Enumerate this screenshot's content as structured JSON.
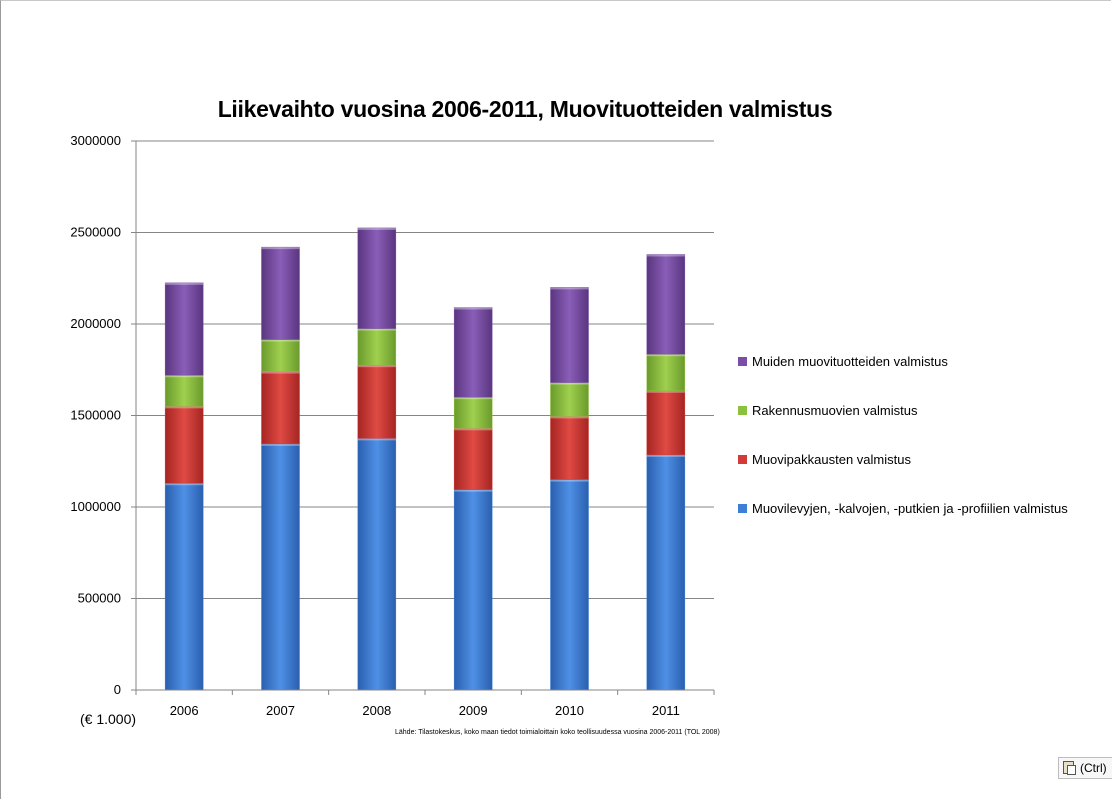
{
  "chart_data": {
    "type": "bar",
    "stacked": true,
    "title": "Liikevaihto vuosina 2006-2011, Muovituotteiden valmistus",
    "categories": [
      "2006",
      "2007",
      "2008",
      "2009",
      "2010",
      "2011"
    ],
    "series": [
      {
        "name": "Muovilevyjen, -kalvojen, -putkien ja -profiilien valmistus",
        "color": "#3d7fd6",
        "values": [
          1130000,
          1345000,
          1375000,
          1095000,
          1150000,
          1285000
        ]
      },
      {
        "name": "Muovipakkausten valmistus",
        "color": "#d23b37",
        "values": [
          420000,
          395000,
          400000,
          335000,
          345000,
          350000
        ]
      },
      {
        "name": "Rakennusmuovien valmistus",
        "color": "#8cc13f",
        "values": [
          170000,
          175000,
          200000,
          170000,
          185000,
          200000
        ]
      },
      {
        "name": "Muiden muovituotteiden valmistus",
        "color": "#7a4ea6",
        "values": [
          505000,
          505000,
          550000,
          490000,
          520000,
          545000
        ]
      }
    ],
    "ylim": [
      0,
      3000000
    ],
    "yticks": [
      "0",
      "500000",
      "1000000",
      "1500000",
      "2000000",
      "2500000",
      "3000000"
    ],
    "unit": "(€ 1.000)",
    "source": "Lähde: Tilastokeskus, koko maan tiedot toimialoittain koko teollisuudessa vuosina 2006-2011 (TOL 2008)",
    "grid": true,
    "legend_position": "right"
  },
  "ctrl_button": {
    "label": "(Ctrl)",
    "icon": "paste-icon"
  }
}
